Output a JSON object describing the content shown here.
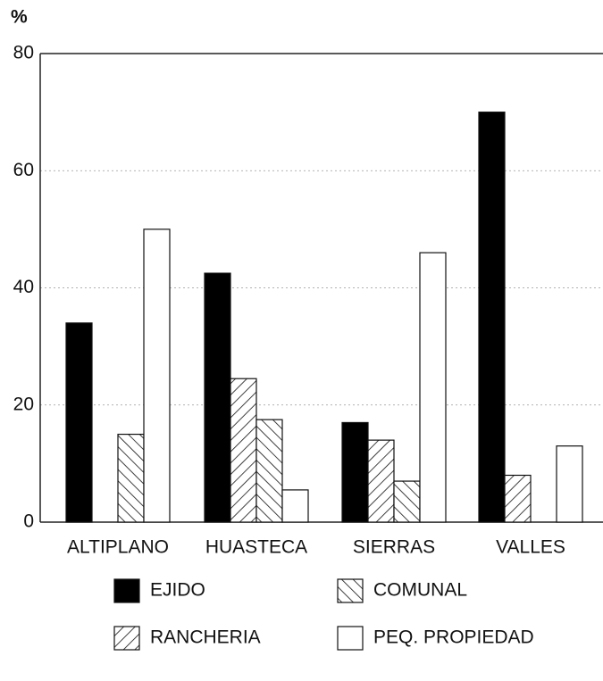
{
  "chart_data": {
    "type": "bar",
    "y_label": "%",
    "categories": [
      "ALTIPLANO",
      "HUASTECA",
      "SIERRAS",
      "VALLES"
    ],
    "series": [
      {
        "name": "EJIDO",
        "color": "#000000",
        "hatch": "none",
        "values": [
          34,
          42.5,
          17,
          70
        ]
      },
      {
        "name": "RANCHERIA",
        "color": "#ffffff",
        "hatch": "forward",
        "values": [
          0,
          24.5,
          14,
          8
        ]
      },
      {
        "name": "COMUNAL",
        "color": "#ffffff",
        "hatch": "back",
        "values": [
          15,
          17.5,
          7,
          0
        ]
      },
      {
        "name": "PEQ. PROPIEDAD",
        "color": "#ffffff",
        "hatch": "none",
        "values": [
          50,
          5.5,
          46,
          13
        ]
      }
    ],
    "ylim": [
      0,
      80
    ],
    "yticks": [
      0,
      20,
      40,
      60,
      80
    ],
    "grid": true
  }
}
